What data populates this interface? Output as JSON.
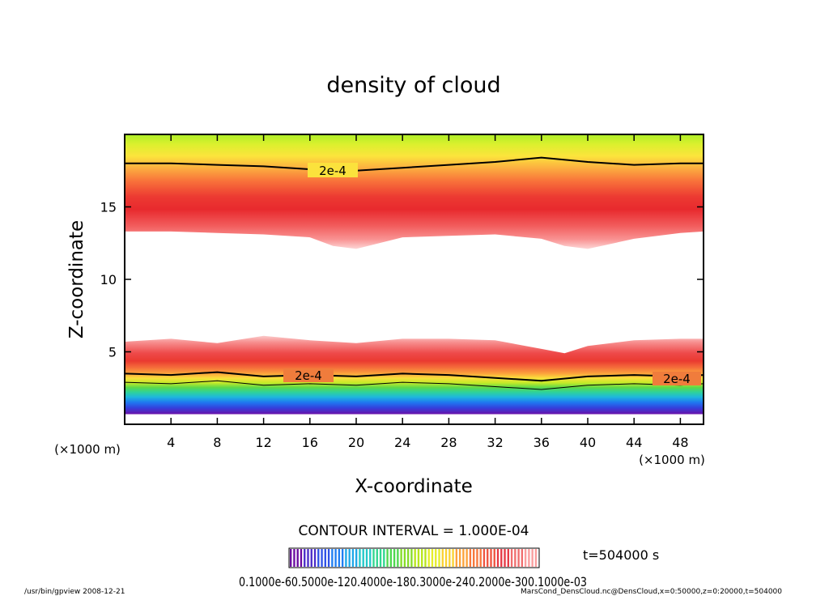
{
  "chart_data": {
    "type": "heatmap",
    "title": "density of cloud",
    "xlabel": "X-coordinate",
    "ylabel": "Z-coordinate",
    "x_unit_label": "(×1000 m)",
    "y_unit_label": "(×1000 m)",
    "xlim": [
      0,
      50
    ],
    "ylim": [
      0,
      20
    ],
    "xticks": [
      4,
      8,
      12,
      16,
      20,
      24,
      28,
      32,
      36,
      40,
      44,
      48
    ],
    "yticks": [
      5,
      10,
      15
    ],
    "upper_band": {
      "x": [
        0,
        4,
        8,
        12,
        16,
        18,
        20,
        22,
        24,
        28,
        32,
        36,
        38,
        40,
        44,
        48,
        50
      ],
      "bottom": [
        13.3,
        13.3,
        13.2,
        13.1,
        12.9,
        12.3,
        12.1,
        12.5,
        12.9,
        13.0,
        13.1,
        12.8,
        12.3,
        12.1,
        12.8,
        13.2,
        13.3
      ],
      "peak": [
        15.0,
        15.0,
        14.8,
        14.6,
        14.3,
        14.1,
        14.0,
        14.2,
        14.5,
        14.6,
        14.6,
        14.5,
        14.4,
        14.3,
        14.7,
        15.0,
        15.0
      ]
    },
    "contour_upper_2e4": {
      "label": "2e-4",
      "x": [
        0,
        4,
        8,
        12,
        16,
        20,
        24,
        28,
        32,
        36,
        40,
        44,
        48,
        50
      ],
      "y": [
        18.0,
        18.0,
        17.9,
        17.8,
        17.6,
        17.5,
        17.7,
        17.9,
        18.1,
        18.4,
        18.1,
        17.9,
        18.0,
        18.0
      ]
    },
    "lower_band": {
      "x": [
        0,
        4,
        8,
        12,
        16,
        20,
        24,
        28,
        32,
        36,
        38,
        40,
        44,
        48,
        50
      ],
      "top": [
        5.7,
        5.9,
        5.6,
        6.1,
        5.8,
        5.6,
        5.9,
        5.9,
        5.8,
        5.2,
        4.9,
        5.4,
        5.8,
        5.9,
        5.9
      ]
    },
    "contour_lower_2e4": {
      "label": "2e-4",
      "x": [
        0,
        4,
        8,
        12,
        16,
        20,
        24,
        28,
        32,
        36,
        40,
        44,
        48,
        50
      ],
      "y": [
        3.5,
        3.4,
        3.6,
        3.3,
        3.4,
        3.3,
        3.5,
        3.4,
        3.2,
        3.0,
        3.3,
        3.4,
        3.3,
        3.4
      ]
    },
    "contour_interval": "CONTOUR INTERVAL = 1.000E-04",
    "colorbar": {
      "colors": [
        "#6a0aa0",
        "#4b2cc8",
        "#2f52e6",
        "#1f7ef2",
        "#1ea8e8",
        "#23c8c8",
        "#2fd690",
        "#4ed84e",
        "#86dc28",
        "#b8e61c",
        "#e6ee2a",
        "#fad232",
        "#fca23a",
        "#f8783c",
        "#f05440",
        "#e63844",
        "#f06e6e",
        "#fa9e9e"
      ],
      "label_text": "0.1000e-60.5000e-120.4000e-180.3000e-240.2000e-300.1000e-03"
    },
    "time_text": "t=504000 s"
  },
  "footer": {
    "left": "/usr/bin/gpview   2008-12-21",
    "right": "MarsCond_DensCloud.nc@DensCloud,x=0:50000,z=0:20000,t=504000"
  }
}
